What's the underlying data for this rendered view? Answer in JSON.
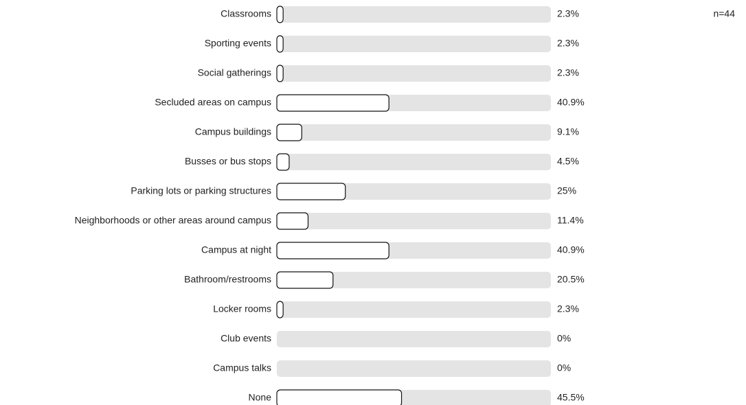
{
  "chart_data": {
    "type": "bar",
    "orientation": "horizontal",
    "annotation": "n=44",
    "categories": [
      "Classrooms",
      "Sporting events",
      "Social gatherings",
      "Secluded areas on campus",
      "Campus buildings",
      "Busses or bus stops",
      "Parking lots or parking structures",
      "Neighborhoods or other areas around campus",
      "Campus at night",
      "Bathroom/restrooms",
      "Locker rooms",
      "Club events",
      "Campus talks",
      "None"
    ],
    "values": [
      2.3,
      2.3,
      2.3,
      40.9,
      9.1,
      4.5,
      25,
      11.4,
      40.9,
      20.5,
      2.3,
      0,
      0,
      45.5
    ],
    "value_labels": [
      "2.3%",
      "2.3%",
      "2.3%",
      "40.9%",
      "9.1%",
      "4.5%",
      "25%",
      "11.4%",
      "40.9%",
      "20.5%",
      "2.3%",
      "0%",
      "0%",
      "45.5%"
    ],
    "color": "#ffffff",
    "xlim": [
      0,
      100
    ]
  }
}
